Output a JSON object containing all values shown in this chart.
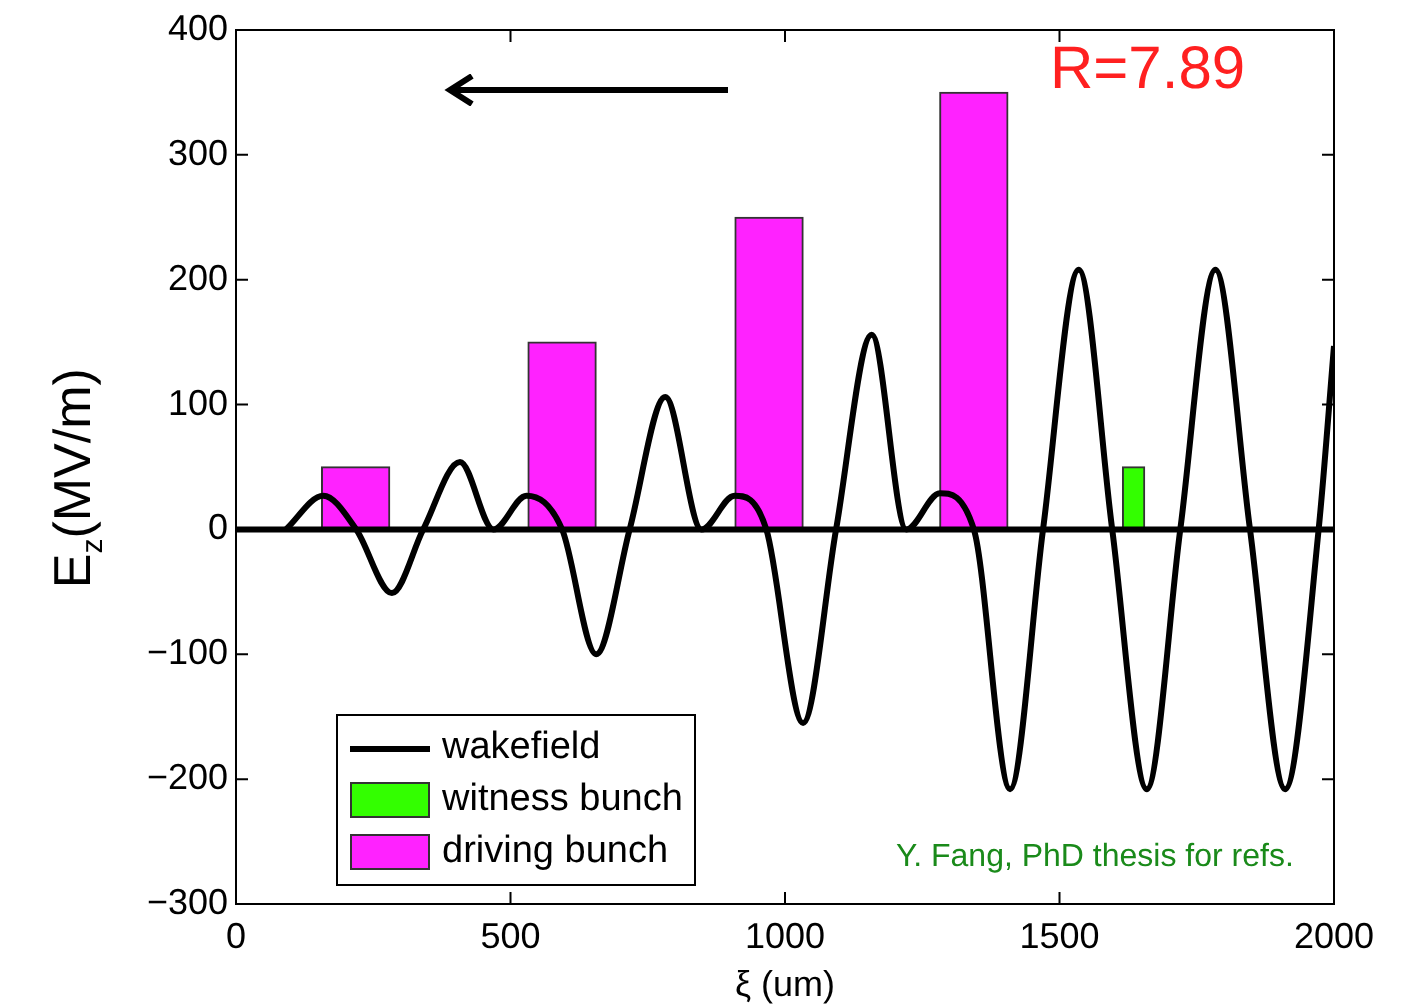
{
  "chart_data": {
    "type": "line",
    "xlabel": "ξ (um)",
    "ylabel": "E$_{z}$(MV/m)",
    "xlim": [
      0,
      2000
    ],
    "xticks": [
      0,
      500,
      1000,
      1500,
      2000
    ],
    "ylim": [
      -300,
      400
    ],
    "yticks": [
      {
        "value": -300,
        "label": "−300"
      },
      {
        "value": -200,
        "label": "−200"
      },
      {
        "value": -100,
        "label": "−100"
      },
      0,
      100,
      200,
      300,
      400
    ],
    "series": [
      {
        "name": "wakefield",
        "color": "#000000",
        "x": [
          91,
          159,
          219,
          284,
          341,
          408,
          469,
          529,
          594,
          656,
          717,
          782,
          848,
          908,
          966,
          1033,
          1093,
          1158,
          1221,
          1282,
          1344,
          1410,
          1470,
          1535,
          1596,
          1659,
          1720,
          1784,
          1847,
          1911,
          1972,
          2000
        ],
        "values": [
          0,
          27,
          0,
          -51,
          0,
          54,
          0,
          27,
          0,
          -100,
          0,
          106,
          0,
          27,
          0,
          -155,
          0,
          156,
          0,
          29,
          0,
          -208,
          0,
          208,
          0,
          -208,
          0,
          208,
          0,
          -208,
          0,
          147
        ]
      },
      {
        "name": "witness bunch",
        "type": "bar",
        "color": "#33ff00",
        "x": [
          1655
        ],
        "values": [
          50
        ]
      },
      {
        "name": "driving bunch",
        "type": "bar",
        "color": "#ff22ff",
        "x": [
          156,
          532,
          909,
          1282
        ],
        "values": [
          50,
          150,
          250,
          350
        ]
      }
    ],
    "ref_lines": [
      {
        "axis": "y",
        "value": 0,
        "color": "#000000"
      }
    ],
    "annotations": [
      "R=7.89",
      "Y. Fang, PhD thesis for refs."
    ],
    "legend": "bottom left",
    "grid": false,
    "marker": "none",
    "line_style": "solid"
  }
}
